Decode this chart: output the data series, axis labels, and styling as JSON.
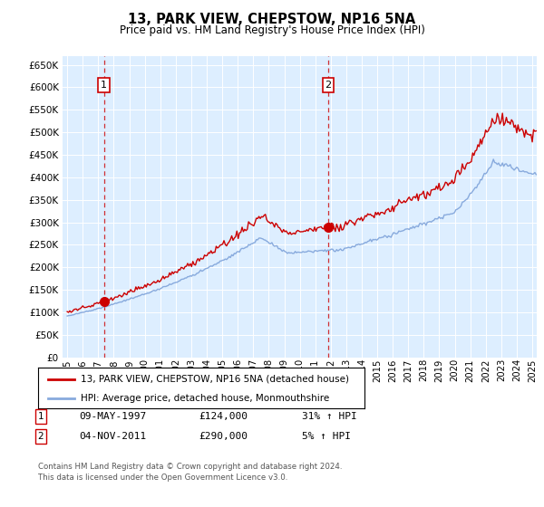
{
  "title": "13, PARK VIEW, CHEPSTOW, NP16 5NA",
  "subtitle": "Price paid vs. HM Land Registry's House Price Index (HPI)",
  "ylim": [
    0,
    670000
  ],
  "yticks": [
    0,
    50000,
    100000,
    150000,
    200000,
    250000,
    300000,
    350000,
    400000,
    450000,
    500000,
    550000,
    600000,
    650000
  ],
  "bg_color": "#ddeeff",
  "grid_color": "#ffffff",
  "sale1_date": 1997.37,
  "sale1_price": 124000,
  "sale1_label": "1",
  "sale2_date": 2011.84,
  "sale2_price": 290000,
  "sale2_label": "2",
  "legend_line1": "13, PARK VIEW, CHEPSTOW, NP16 5NA (detached house)",
  "legend_line2": "HPI: Average price, detached house, Monmouthshire",
  "table_row1": [
    "1",
    "09-MAY-1997",
    "£124,000",
    "31% ↑ HPI"
  ],
  "table_row2": [
    "2",
    "04-NOV-2011",
    "£290,000",
    "5% ↑ HPI"
  ],
  "footer": "Contains HM Land Registry data © Crown copyright and database right 2024.\nThis data is licensed under the Open Government Licence v3.0.",
  "line_color_red": "#cc0000",
  "line_color_blue": "#88aadd",
  "dot_color": "#cc0000",
  "xlim_left": 1994.7,
  "xlim_right": 2025.3
}
